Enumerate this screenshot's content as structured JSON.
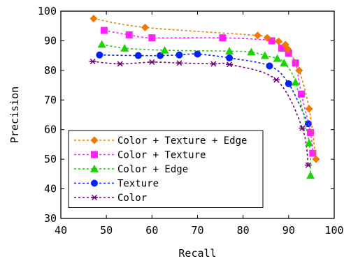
{
  "chart_data": {
    "type": "line",
    "xlabel": "Recall",
    "ylabel": "Precision",
    "xlim": [
      40,
      100
    ],
    "ylim": [
      30,
      100
    ],
    "xticks": [
      40,
      50,
      60,
      70,
      80,
      90,
      100
    ],
    "yticks": [
      30,
      40,
      50,
      60,
      70,
      80,
      90,
      100
    ],
    "grid": false,
    "legend_position": "bottom-left",
    "series": [
      {
        "name": "Color + Texture + Edge",
        "color": "#f07800",
        "marker": "diamond",
        "points": [
          [
            47.2,
            97.5
          ],
          [
            58.5,
            94.5
          ],
          [
            83.2,
            91.8
          ],
          [
            85.3,
            91.0
          ],
          [
            87.8,
            89.8
          ],
          [
            89.3,
            88.7
          ],
          [
            89.8,
            87.2
          ],
          [
            92.3,
            80.0
          ],
          [
            94.5,
            67.0
          ],
          [
            96.0,
            50.0
          ]
        ]
      },
      {
        "name": "Color + Texture",
        "color": "#ff20ff",
        "marker": "square",
        "points": [
          [
            49.5,
            93.5
          ],
          [
            55.0,
            92.0
          ],
          [
            60.0,
            91.0
          ],
          [
            75.5,
            91.0
          ],
          [
            86.3,
            90.0
          ],
          [
            88.5,
            87.5
          ],
          [
            90.0,
            85.8
          ],
          [
            91.5,
            82.5
          ],
          [
            92.8,
            72.0
          ],
          [
            94.8,
            59.0
          ],
          [
            95.3,
            52.0
          ]
        ]
      },
      {
        "name": "Color + Edge",
        "color": "#18d400",
        "marker": "triangle",
        "points": [
          [
            49.0,
            88.8
          ],
          [
            54.0,
            87.5
          ],
          [
            62.8,
            86.8
          ],
          [
            77.0,
            86.5
          ],
          [
            81.8,
            86.2
          ],
          [
            84.8,
            85.0
          ],
          [
            87.5,
            84.0
          ],
          [
            89.0,
            82.5
          ],
          [
            91.5,
            76.0
          ],
          [
            94.5,
            55.5
          ],
          [
            94.8,
            44.5
          ]
        ]
      },
      {
        "name": "Texture",
        "color": "#0020ff",
        "marker": "circle",
        "points": [
          [
            48.5,
            85.2
          ],
          [
            57.0,
            85.0
          ],
          [
            61.8,
            85.0
          ],
          [
            66.0,
            85.2
          ],
          [
            70.0,
            85.5
          ],
          [
            77.0,
            84.2
          ],
          [
            85.8,
            81.5
          ],
          [
            90.0,
            75.5
          ],
          [
            94.3,
            62.0
          ]
        ]
      },
      {
        "name": "Color",
        "color": "#700070",
        "marker": "asterisk",
        "points": [
          [
            47.0,
            83.0
          ],
          [
            53.0,
            82.2
          ],
          [
            60.0,
            82.8
          ],
          [
            66.0,
            82.5
          ],
          [
            73.5,
            82.2
          ],
          [
            77.0,
            82.0
          ],
          [
            87.3,
            76.8
          ],
          [
            93.0,
            60.5
          ],
          [
            94.3,
            48.0
          ]
        ]
      }
    ]
  }
}
